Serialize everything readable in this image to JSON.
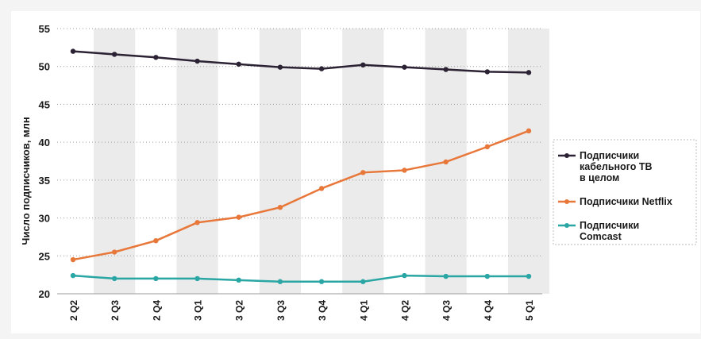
{
  "chart_data": {
    "type": "line",
    "ylabel": "Число подписчиков, млн",
    "ylim": [
      20,
      55
    ],
    "yticks": [
      20,
      25,
      30,
      35,
      40,
      45,
      50,
      55
    ],
    "categories": [
      "2 Q2",
      "2 Q3",
      "2 Q4",
      "3 Q1",
      "3 Q2",
      "3 Q3",
      "3 Q4",
      "4 Q1",
      "4 Q2",
      "4 Q3",
      "4 Q4",
      "5 Q1"
    ],
    "grid": true,
    "legend_position": "right",
    "series": [
      {
        "name": "Подписчики кабельного ТВ в целом",
        "color": "#2b2233",
        "values": [
          52.0,
          51.6,
          51.2,
          50.7,
          50.3,
          49.9,
          49.7,
          50.2,
          49.9,
          49.6,
          49.3,
          49.2
        ]
      },
      {
        "name": "Подписчики Netflix",
        "color": "#e8773a",
        "values": [
          24.5,
          25.5,
          27.0,
          29.4,
          30.1,
          31.4,
          33.9,
          36.0,
          36.3,
          37.4,
          39.4,
          41.5
        ]
      },
      {
        "name": "Подписчики Comcast",
        "color": "#2aa6a4",
        "values": [
          22.4,
          22.0,
          22.0,
          22.0,
          21.8,
          21.6,
          21.6,
          21.6,
          22.4,
          22.3,
          22.3,
          22.3
        ]
      }
    ],
    "legend_lines": [
      [
        "Подписчики",
        "кабельного ТВ",
        "в целом"
      ],
      [
        "Подписчики Netflix"
      ],
      [
        "Подписчики",
        "Comcast"
      ]
    ]
  }
}
